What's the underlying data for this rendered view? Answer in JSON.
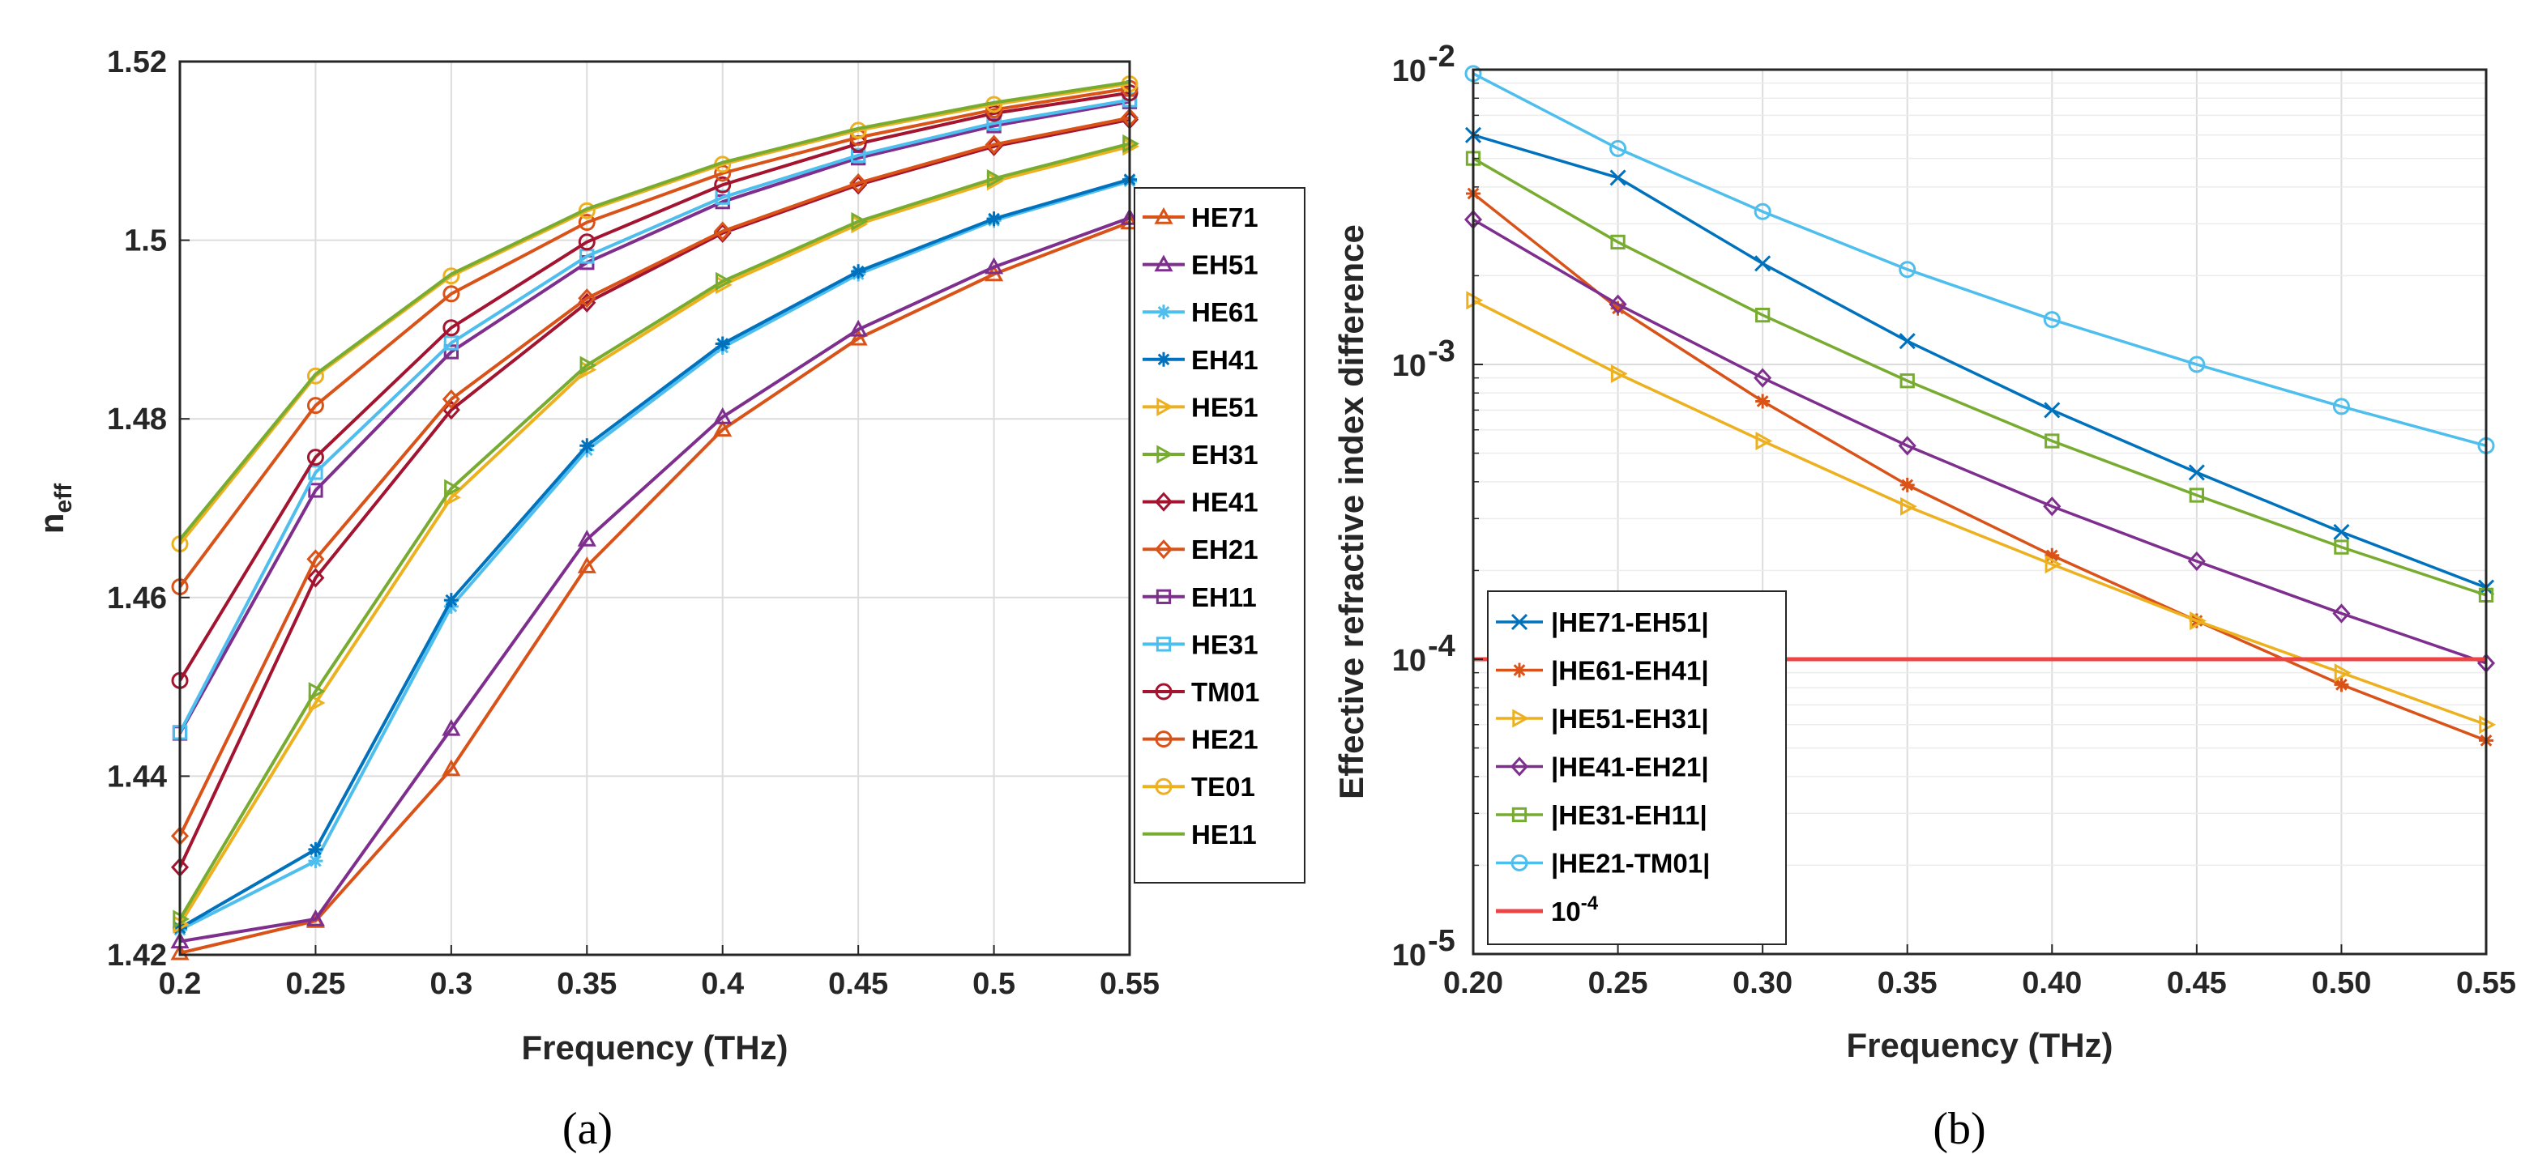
{
  "colors": {
    "c1": "#0072bd",
    "c2": "#d95319",
    "c3": "#edb120",
    "c4": "#7e2f8e",
    "c5": "#77ac30",
    "c6": "#4dbeee",
    "c7": "#a2142f",
    "threshold": "#ee4444"
  },
  "chart_data": [
    {
      "type": "line",
      "caption": "(a)",
      "xlabel": "Frequency (THz)",
      "ylabel": "n",
      "ylabel_sub": "eff",
      "xlim": [
        0.2,
        0.55
      ],
      "ylim": [
        1.42,
        1.52
      ],
      "xticks": [
        0.2,
        0.25,
        0.3,
        0.35,
        0.4,
        0.45,
        0.5,
        0.55
      ],
      "xtick_labels": [
        "0.2",
        "0.25",
        "0.3",
        "0.35",
        "0.4",
        "0.45",
        "0.5",
        "0.55"
      ],
      "yticks": [
        1.42,
        1.44,
        1.46,
        1.48,
        1.5,
        1.52
      ],
      "ytick_labels": [
        "1.42",
        "1.44",
        "1.46",
        "1.48",
        "1.5",
        "1.52"
      ],
      "x": [
        0.2,
        0.25,
        0.3,
        0.35,
        0.4,
        0.45,
        0.5,
        0.55
      ],
      "series": [
        {
          "name": "HE71",
          "color": "#d95319",
          "marker": "triangle-up",
          "values": [
            1.4202,
            1.4238,
            1.4408,
            1.4635,
            1.4788,
            1.489,
            1.4962,
            1.502
          ]
        },
        {
          "name": "EH51",
          "color": "#7e2f8e",
          "marker": "triangle-up",
          "values": [
            1.4215,
            1.424,
            1.4453,
            1.4665,
            1.4802,
            1.49,
            1.497,
            1.5025
          ]
        },
        {
          "name": "HE61",
          "color": "#4dbeee",
          "marker": "star",
          "values": [
            1.4228,
            1.4305,
            1.459,
            1.4765,
            1.488,
            1.4962,
            1.5022,
            1.5066
          ]
        },
        {
          "name": "EH41",
          "color": "#0072bd",
          "marker": "star",
          "values": [
            1.423,
            1.4318,
            1.4597,
            1.477,
            1.4884,
            1.4965,
            1.5024,
            1.5068
          ]
        },
        {
          "name": "HE51",
          "color": "#edb120",
          "marker": "triangle-right",
          "values": [
            1.4234,
            1.4482,
            1.4712,
            1.4855,
            1.495,
            1.5018,
            1.5066,
            1.5105
          ]
        },
        {
          "name": "EH31",
          "color": "#77ac30",
          "marker": "triangle-right",
          "values": [
            1.424,
            1.4495,
            1.4722,
            1.486,
            1.4954,
            1.5021,
            1.5069,
            1.5108
          ]
        },
        {
          "name": "HE41",
          "color": "#a2142f",
          "marker": "diamond",
          "values": [
            1.4298,
            1.4622,
            1.481,
            1.493,
            1.5008,
            1.5062,
            1.5105,
            1.5135
          ]
        },
        {
          "name": "EH21",
          "color": "#d95319",
          "marker": "diamond",
          "values": [
            1.4333,
            1.4643,
            1.4822,
            1.4935,
            1.501,
            1.5064,
            1.5107,
            1.5137
          ]
        },
        {
          "name": "EH11",
          "color": "#7e2f8e",
          "marker": "square",
          "values": [
            1.4448,
            1.472,
            1.4875,
            1.4975,
            1.5043,
            1.5092,
            1.5128,
            1.5155
          ]
        },
        {
          "name": "HE31",
          "color": "#4dbeee",
          "marker": "square",
          "values": [
            1.4449,
            1.474,
            1.4885,
            1.4982,
            1.5048,
            1.5095,
            1.5131,
            1.5157
          ]
        },
        {
          "name": "TM01",
          "color": "#a2142f",
          "marker": "circle",
          "values": [
            1.4507,
            1.4757,
            1.4902,
            1.4998,
            1.5062,
            1.5108,
            1.5142,
            1.5165
          ]
        },
        {
          "name": "HE21",
          "color": "#d95319",
          "marker": "circle",
          "values": [
            1.4612,
            1.4815,
            1.494,
            1.502,
            1.5075,
            1.5115,
            1.5146,
            1.517
          ]
        },
        {
          "name": "TE01",
          "color": "#edb120",
          "marker": "circle",
          "values": [
            1.466,
            1.4848,
            1.496,
            1.5033,
            1.5085,
            1.5123,
            1.5152,
            1.5175
          ]
        },
        {
          "name": "HE11",
          "color": "#77ac30",
          "marker": "none",
          "values": [
            1.4665,
            1.485,
            1.4962,
            1.5035,
            1.5087,
            1.5125,
            1.5154,
            1.5177
          ]
        }
      ]
    },
    {
      "type": "line",
      "caption": "(b)",
      "yscale": "log",
      "xlabel": "Frequency (THz)",
      "ylabel": "Effective refractive index difference",
      "xlim": [
        0.2,
        0.55
      ],
      "ylim": [
        1e-05,
        0.01
      ],
      "xticks": [
        0.2,
        0.25,
        0.3,
        0.35,
        0.4,
        0.45,
        0.5,
        0.55
      ],
      "xtick_labels": [
        "0.20",
        "0.25",
        "0.30",
        "0.35",
        "0.40",
        "0.45",
        "0.50",
        "0.55"
      ],
      "ytick_exponents": [
        -5,
        -4,
        -3,
        -2
      ],
      "ytick_base": "10",
      "ytick_labels": [
        "-5",
        "-4",
        "-3",
        "-2"
      ],
      "x": [
        0.2,
        0.25,
        0.3,
        0.35,
        0.4,
        0.45,
        0.5,
        0.55
      ],
      "series": [
        {
          "name": "|HE71-EH51|",
          "color": "#0072bd",
          "marker": "x",
          "values": [
            0.006,
            0.0043,
            0.0022,
            0.0012,
            0.0007,
            0.00043,
            0.00027,
            0.000175
          ]
        },
        {
          "name": "|HE61-EH41|",
          "color": "#d95319",
          "marker": "star",
          "values": [
            0.0038,
            0.00155,
            0.00075,
            0.00039,
            0.000225,
            0.000135,
            8.2e-05,
            5.3e-05
          ]
        },
        {
          "name": "|HE51-EH31|",
          "color": "#edb120",
          "marker": "triangle-right",
          "values": [
            0.00165,
            0.00093,
            0.00055,
            0.00033,
            0.00021,
            0.000135,
            9e-05,
            6e-05
          ]
        },
        {
          "name": "|HE41-EH21|",
          "color": "#7e2f8e",
          "marker": "diamond",
          "values": [
            0.0031,
            0.0016,
            0.0009,
            0.00053,
            0.00033,
            0.000215,
            0.000143,
            9.7e-05
          ]
        },
        {
          "name": "|HE31-EH11|",
          "color": "#77ac30",
          "marker": "square",
          "values": [
            0.005,
            0.0026,
            0.00147,
            0.00088,
            0.00055,
            0.00036,
            0.00024,
            0.000165
          ]
        },
        {
          "name": "|HE21-TM01|",
          "color": "#4dbeee",
          "marker": "circle",
          "values": [
            0.0097,
            0.0054,
            0.0033,
            0.0021,
            0.00142,
            0.001,
            0.00072,
            0.00053
          ]
        },
        {
          "name": "10",
          "name_sup": "-4",
          "color": "#ee4444",
          "marker": "none",
          "values": [
            0.0001,
            0.0001,
            0.0001,
            0.0001,
            0.0001,
            0.0001,
            0.0001,
            0.0001
          ]
        }
      ]
    }
  ]
}
